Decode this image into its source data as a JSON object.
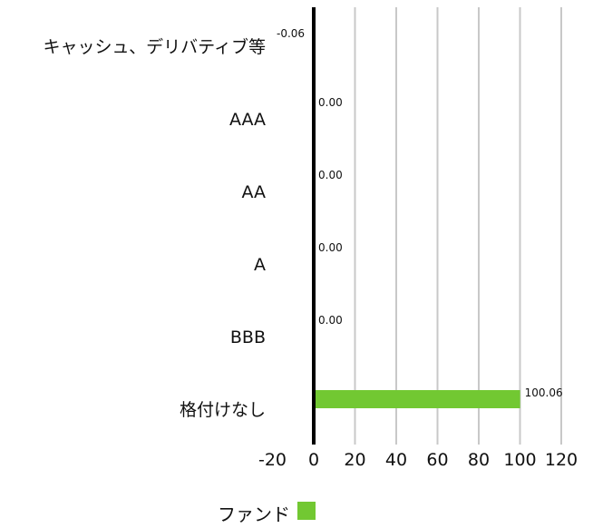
{
  "chart_data": {
    "type": "bar",
    "orientation": "horizontal",
    "categories": [
      "キャッシュ、デリバティブ等",
      "AAA",
      "AA",
      "A",
      "BBB",
      "格付けなし"
    ],
    "series": [
      {
        "name": "ファンド",
        "values": [
          -0.06,
          0.0,
          0.0,
          0.0,
          0.0,
          100.06
        ],
        "labels": [
          "-0.06",
          "0.00",
          "0.00",
          "0.00",
          "0.00",
          "100.06"
        ],
        "color": "#72c832"
      }
    ],
    "xlim": [
      -20,
      120
    ],
    "xticks": [
      -20,
      0,
      20,
      40,
      60,
      80,
      100,
      120
    ],
    "xtick_labels": [
      "-20",
      "0",
      "20",
      "40",
      "60",
      "80",
      "100",
      "120"
    ],
    "grid": true,
    "gridline_color": "#c8c8c8",
    "zero_line_color": "#000000",
    "legend": {
      "position": "bottom-center",
      "entries": [
        "ファンド"
      ]
    }
  }
}
